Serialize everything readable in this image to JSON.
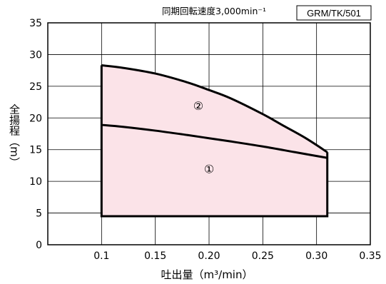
{
  "chart_data": {
    "type": "area",
    "title": "同期回転速度3,000min⁻¹",
    "model": "GRM/TK/501",
    "xlabel": "吐出量（m³/min）",
    "ylabel": "全揚程（m）",
    "xlim": [
      0.05,
      0.35
    ],
    "ylim": [
      0,
      35
    ],
    "x_ticks": [
      "0.1",
      "0.15",
      "0.20",
      "0.25",
      "0.30",
      "0.35"
    ],
    "x_tick_values": [
      0.1,
      0.15,
      0.2,
      0.25,
      0.3,
      0.35
    ],
    "y_ticks": [
      "0",
      "5",
      "10",
      "15",
      "20",
      "25",
      "30",
      "35"
    ],
    "y_tick_values": [
      0,
      5,
      10,
      15,
      20,
      25,
      30,
      35
    ],
    "grid": true,
    "fill_color": "#fbe3e8",
    "line_color": "#000000",
    "series": [
      {
        "label": "①",
        "label_position": {
          "x": 0.2,
          "y": 11.8
        },
        "x": [
          0.1,
          0.12,
          0.15,
          0.18,
          0.2,
          0.22,
          0.25,
          0.28,
          0.31
        ],
        "y": [
          18.9,
          18.6,
          18.0,
          17.3,
          16.8,
          16.3,
          15.5,
          14.6,
          13.7
        ]
      },
      {
        "label": "②",
        "label_position": {
          "x": 0.19,
          "y": 21.8
        },
        "x": [
          0.1,
          0.12,
          0.15,
          0.18,
          0.2,
          0.22,
          0.25,
          0.27,
          0.29,
          0.31
        ],
        "y": [
          28.3,
          27.9,
          27.0,
          25.6,
          24.4,
          23.1,
          20.6,
          18.7,
          16.8,
          14.6
        ]
      }
    ],
    "bottom_limit": 4.5,
    "right_limit": 0.31
  }
}
